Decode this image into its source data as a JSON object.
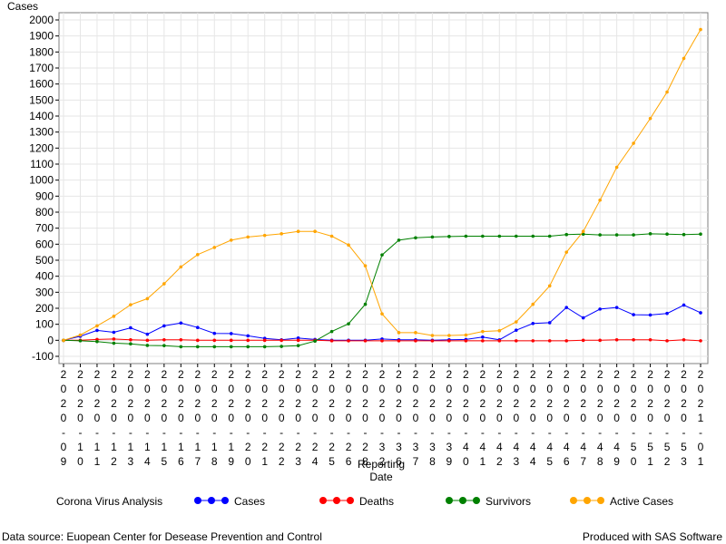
{
  "chart_data": {
    "type": "line",
    "title": "",
    "ylabel": "Cases",
    "xlabel_lines": [
      "Reporting",
      "Date"
    ],
    "ylim": [
      -100,
      2000
    ],
    "yticks": [
      -100,
      0,
      100,
      200,
      300,
      400,
      500,
      600,
      700,
      800,
      900,
      1000,
      1100,
      1200,
      1300,
      1400,
      1500,
      1600,
      1700,
      1800,
      1900,
      2000
    ],
    "grid": true,
    "categories": [
      "2020-09",
      "2020-10",
      "2020-11",
      "2020-12",
      "2020-13",
      "2020-14",
      "2020-15",
      "2020-16",
      "2020-17",
      "2020-18",
      "2020-19",
      "2020-20",
      "2020-21",
      "2020-22",
      "2020-23",
      "2020-24",
      "2020-25",
      "2020-26",
      "2020-28",
      "2020-32",
      "2020-36",
      "2020-37",
      "2020-38",
      "2020-39",
      "2020-40",
      "2020-41",
      "2020-42",
      "2020-43",
      "2020-44",
      "2020-45",
      "2020-46",
      "2020-47",
      "2020-48",
      "2020-49",
      "2020-50",
      "2020-51",
      "2020-52",
      "2020-53",
      "2021-01"
    ],
    "series": [
      {
        "name": "Cases",
        "color": "#0000ff",
        "values": [
          0,
          25,
          62,
          50,
          78,
          38,
          90,
          108,
          80,
          43,
          42,
          28,
          12,
          3,
          14,
          5,
          0,
          0,
          0,
          8,
          3,
          3,
          0,
          3,
          5,
          20,
          3,
          63,
          105,
          110,
          205,
          140,
          195,
          205,
          160,
          158,
          168,
          220,
          172
        ]
      },
      {
        "name": "Deaths",
        "color": "#ff0000",
        "values": [
          0,
          0,
          5,
          8,
          3,
          0,
          3,
          3,
          0,
          0,
          0,
          0,
          0,
          0,
          0,
          0,
          -3,
          -3,
          -3,
          -3,
          -3,
          -3,
          -3,
          -3,
          -3,
          -3,
          -3,
          -3,
          -3,
          -3,
          -3,
          0,
          0,
          3,
          3,
          3,
          -3,
          3,
          -3
        ]
      },
      {
        "name": "Survivors",
        "color": "#008000",
        "values": [
          0,
          -3,
          -8,
          -18,
          -22,
          -32,
          -33,
          -40,
          -40,
          -40,
          -40,
          -40,
          -40,
          -38,
          -33,
          -5,
          55,
          103,
          225,
          533,
          625,
          640,
          645,
          648,
          650,
          650,
          650,
          650,
          650,
          650,
          660,
          663,
          658,
          658,
          658,
          665,
          663,
          660,
          663
        ]
      },
      {
        "name": "Active Cases",
        "color": "#ffa500",
        "values": [
          0,
          33,
          90,
          150,
          222,
          260,
          353,
          458,
          535,
          580,
          625,
          645,
          655,
          665,
          680,
          680,
          650,
          595,
          465,
          165,
          48,
          48,
          30,
          30,
          33,
          55,
          60,
          115,
          225,
          340,
          550,
          680,
          875,
          1080,
          1230,
          1385,
          1550,
          1760,
          1940
        ]
      }
    ],
    "legend_placement": "bottom",
    "legend_title": "Corona Virus Analysis"
  },
  "footer": {
    "left": "Data source: Euopean Center for Desease Prevention and Control",
    "right": "Produced with SAS Software"
  }
}
